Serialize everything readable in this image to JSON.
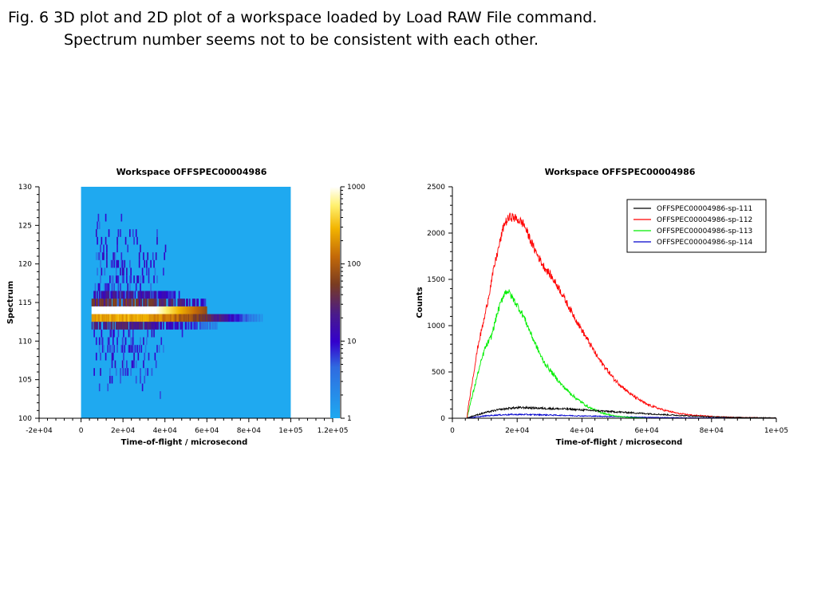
{
  "caption": {
    "line1": "Fig. 6  3D plot and 2D plot of a workspace loaded by Load RAW File command.",
    "line2": "Spectrum number seems not to be consistent with each other."
  },
  "chart_data": [
    {
      "type": "heatmap",
      "title": "Workspace OFFSPEC00004986",
      "xlabel": "Time-of-flight / microsecond",
      "ylabel": "Spectrum",
      "xlim": [
        -20000,
        120000
      ],
      "ylim": [
        100,
        130
      ],
      "data_xrange": [
        0,
        100000
      ],
      "xticks": [
        -20000,
        0,
        20000,
        40000,
        60000,
        80000,
        100000,
        120000
      ],
      "xtick_labels": [
        "-2e+04",
        "0",
        "2e+04",
        "4e+04",
        "6e+04",
        "8e+04",
        "1e+05",
        "1.2e+05"
      ],
      "yticks": [
        100,
        105,
        110,
        115,
        120,
        125,
        130
      ],
      "ytick_labels": [
        "100",
        "105",
        "110",
        "115",
        "120",
        "125",
        "130"
      ],
      "colorbar": {
        "scale": "log",
        "range": [
          1,
          1000
        ],
        "ticks": [
          1,
          10,
          100,
          1000
        ],
        "tick_labels": [
          "1",
          "10",
          "100",
          "1000"
        ]
      },
      "background_color": "#1fa9f0",
      "bands": [
        {
          "spectrum": 114,
          "x_start": 5000,
          "x_end": 60000,
          "peak": 1000,
          "description": "saturated white band"
        },
        {
          "spectrum": 113,
          "x_start": 5000,
          "x_end": 92000,
          "peak": 300
        },
        {
          "spectrum": 115,
          "x_start": 5000,
          "x_end": 60000,
          "peak": 60
        },
        {
          "spectrum": 112,
          "x_start": 5000,
          "x_end": 95000,
          "peak": 30
        },
        {
          "spectrum": 116,
          "x_start": 5000,
          "x_end": 45000,
          "peak": 20
        }
      ]
    },
    {
      "type": "line",
      "title": "Workspace OFFSPEC00004986",
      "xlabel": "Time-of-flight / microsecond",
      "ylabel": "Counts",
      "xlim": [
        0,
        100000
      ],
      "ylim": [
        0,
        2500
      ],
      "xticks": [
        0,
        20000,
        40000,
        60000,
        80000,
        100000
      ],
      "xtick_labels": [
        "0",
        "2e+04",
        "4e+04",
        "6e+04",
        "8e+04",
        "1e+05"
      ],
      "yticks": [
        0,
        500,
        1000,
        1500,
        2000,
        2500
      ],
      "ytick_labels": [
        "0",
        "500",
        "1000",
        "1500",
        "2000",
        "2500"
      ],
      "legend_position": "top-right",
      "series": [
        {
          "name": "OFFSPEC00004986-sp-111",
          "color": "#000000",
          "x": [
            0,
            4500,
            5000,
            8000,
            10000,
            14000,
            18000,
            22000,
            26000,
            30000,
            35000,
            40000,
            50000,
            60000,
            70000,
            80000,
            90000,
            100000
          ],
          "values": [
            0,
            0,
            10,
            40,
            60,
            90,
            110,
            115,
            110,
            105,
            100,
            90,
            70,
            50,
            30,
            15,
            8,
            5
          ]
        },
        {
          "name": "OFFSPEC00004986-sp-112",
          "color": "#ff0000",
          "x": [
            0,
            4500,
            5000,
            8000,
            10000,
            13000,
            16000,
            18000,
            20000,
            22000,
            25000,
            28000,
            30000,
            33000,
            36000,
            40000,
            45000,
            50000,
            55000,
            60000,
            65000,
            70000,
            75000,
            80000,
            85000,
            90000,
            95000,
            100000
          ],
          "values": [
            0,
            0,
            150,
            800,
            1100,
            1650,
            2100,
            2180,
            2150,
            2100,
            1850,
            1650,
            1560,
            1400,
            1200,
            950,
            650,
            420,
            260,
            150,
            90,
            50,
            30,
            20,
            12,
            8,
            5,
            3
          ]
        },
        {
          "name": "OFFSPEC00004986-sp-113",
          "color": "#00ee00",
          "x": [
            0,
            4500,
            5000,
            8000,
            10000,
            12000,
            14000,
            16000,
            17000,
            18000,
            20000,
            22000,
            25000,
            28000,
            31000,
            34000,
            38000,
            42000,
            46000,
            50000,
            55000,
            60000
          ],
          "values": [
            0,
            0,
            80,
            500,
            750,
            880,
            1150,
            1350,
            1380,
            1330,
            1220,
            1100,
            850,
            620,
            480,
            350,
            220,
            120,
            60,
            25,
            8,
            0
          ]
        },
        {
          "name": "OFFSPEC00004986-sp-114",
          "color": "#0000cc",
          "x": [
            0,
            4500,
            5000,
            8000,
            10000,
            14000,
            18000,
            22000,
            26000,
            30000,
            35000,
            40000,
            50000,
            60000,
            70000,
            80000,
            90000,
            100000
          ],
          "values": [
            0,
            0,
            5,
            15,
            25,
            35,
            40,
            40,
            38,
            35,
            30,
            25,
            18,
            10,
            5,
            3,
            2,
            1
          ]
        }
      ]
    }
  ]
}
